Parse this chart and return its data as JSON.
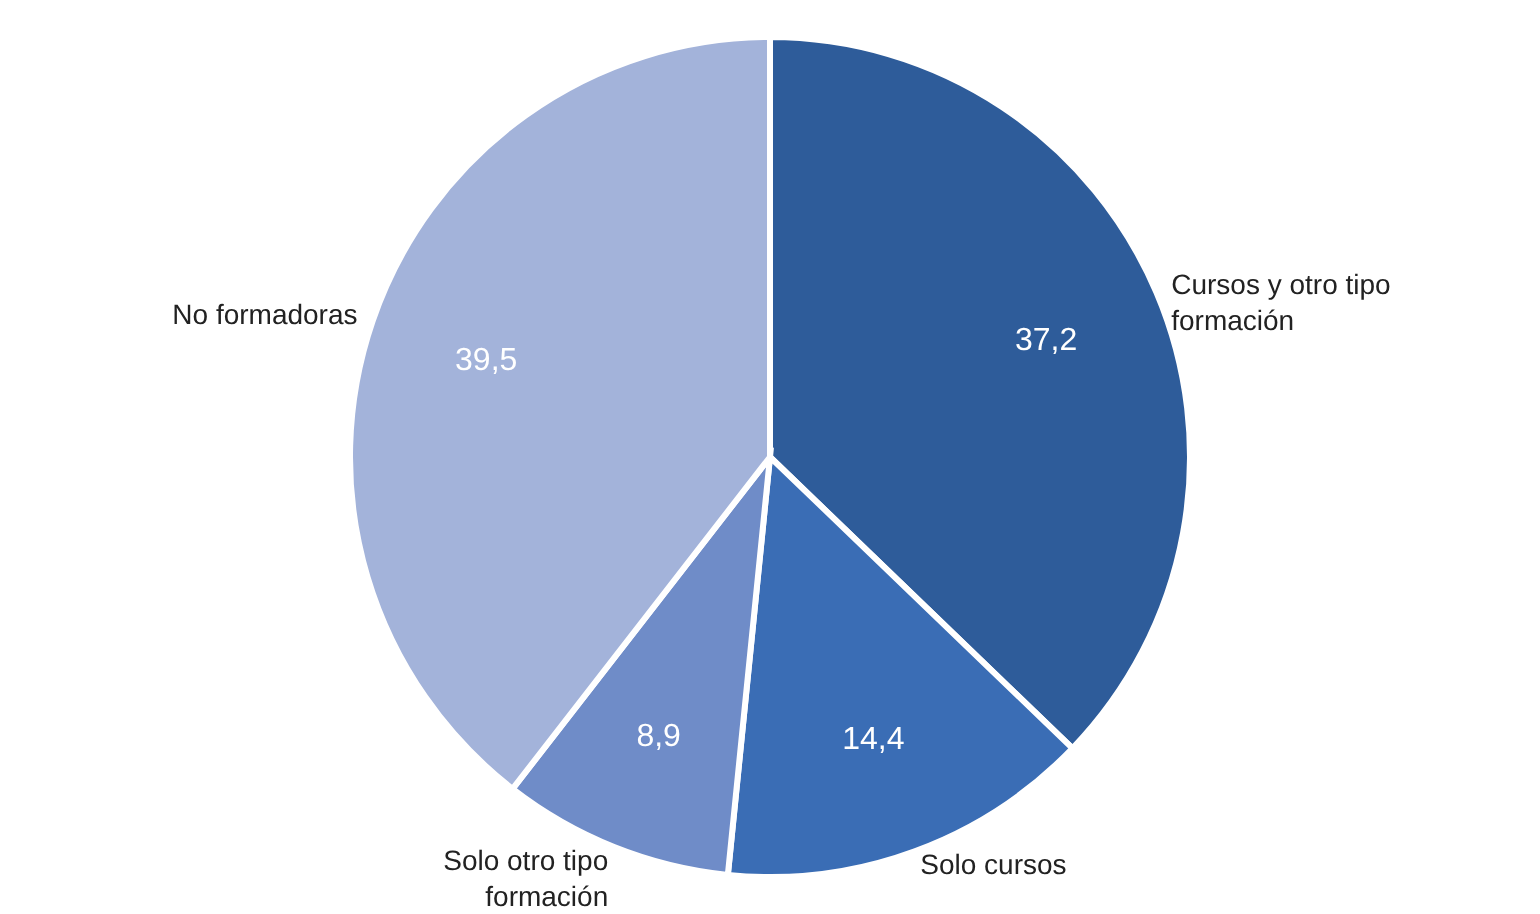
{
  "chart_data": {
    "type": "pie",
    "categories": [
      "Cursos y otro tipo formación",
      "Solo cursos",
      "Solo otro tipo formación",
      "No formadoras"
    ],
    "values": [
      37.2,
      14.4,
      8.9,
      39.5
    ],
    "value_labels": [
      "37,2",
      "14,4",
      "8,9",
      "39,5"
    ],
    "colors": [
      "#2e5c9a",
      "#3a6db5",
      "#6f8cc8",
      "#a3b3da"
    ]
  }
}
